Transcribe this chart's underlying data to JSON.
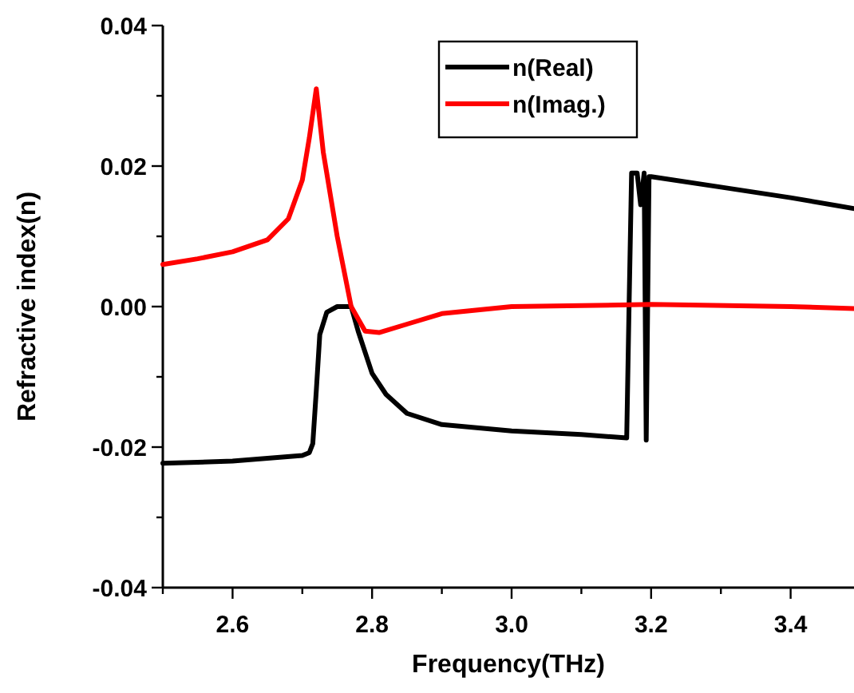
{
  "chart_data": {
    "type": "line",
    "xlabel": "Frequency(THz)",
    "ylabel": "Refractive index(n)",
    "xlim": [
      2.5,
      3.5
    ],
    "xticks": [
      {
        "value": 2.5,
        "label": null
      },
      2.6,
      {
        "value": 2.7,
        "label": null
      },
      2.8,
      {
        "value": 2.9,
        "label": null
      },
      {
        "value": 3.0,
        "label": "3.0"
      },
      {
        "value": 3.1,
        "label": null
      },
      3.2,
      {
        "value": 3.3,
        "label": null
      },
      3.4
    ],
    "ylim": [
      -0.04,
      0.04
    ],
    "yticks": [
      {
        "value": -0.04,
        "label": "-0.04"
      },
      {
        "value": -0.03,
        "label": null
      },
      {
        "value": -0.02,
        "label": "-0.02"
      },
      {
        "value": -0.01,
        "label": null
      },
      {
        "value": 0,
        "label": "0.00"
      },
      {
        "value": 0.01,
        "label": null
      },
      {
        "value": 0.02,
        "label": "0.02"
      },
      {
        "value": 0.03,
        "label": null
      },
      {
        "value": 0.04,
        "label": "0.04"
      }
    ],
    "legend": "top",
    "grid": false,
    "line_style": "solid",
    "marker": "none",
    "series": [
      {
        "name": "n(Real)",
        "color": "#000000",
        "x": [
          2.5,
          2.6,
          2.7,
          2.71,
          2.715,
          2.72,
          2.725,
          2.735,
          2.75,
          2.77,
          2.78,
          2.8,
          2.82,
          2.85,
          2.9,
          3.0,
          3.1,
          3.165,
          3.168,
          3.172,
          3.18,
          3.185,
          3.19,
          3.193,
          3.197,
          3.2,
          3.3,
          3.4,
          3.5
        ],
        "values": [
          -0.0223,
          -0.022,
          -0.0212,
          -0.0208,
          -0.0195,
          -0.012,
          -0.004,
          -0.0008,
          0.0,
          0.0,
          -0.0035,
          -0.0095,
          -0.0125,
          -0.0152,
          -0.0168,
          -0.0177,
          -0.0182,
          -0.0187,
          -0.002,
          0.019,
          0.019,
          0.0145,
          0.019,
          -0.019,
          0.0185,
          0.0185,
          0.017,
          0.0155,
          0.0138
        ]
      },
      {
        "name": "n(Imag.)",
        "color": "#ff0000",
        "x": [
          2.5,
          2.55,
          2.6,
          2.65,
          2.68,
          2.7,
          2.71,
          2.72,
          2.73,
          2.75,
          2.77,
          2.79,
          2.81,
          2.85,
          2.9,
          3.0,
          3.2,
          3.4,
          3.5
        ],
        "values": [
          0.006,
          0.0068,
          0.0078,
          0.0095,
          0.0125,
          0.018,
          0.024,
          0.031,
          0.022,
          0.01,
          0.0,
          -0.0035,
          -0.0037,
          -0.0025,
          -0.001,
          0.0,
          0.0003,
          0.0,
          -0.0003
        ]
      }
    ]
  }
}
